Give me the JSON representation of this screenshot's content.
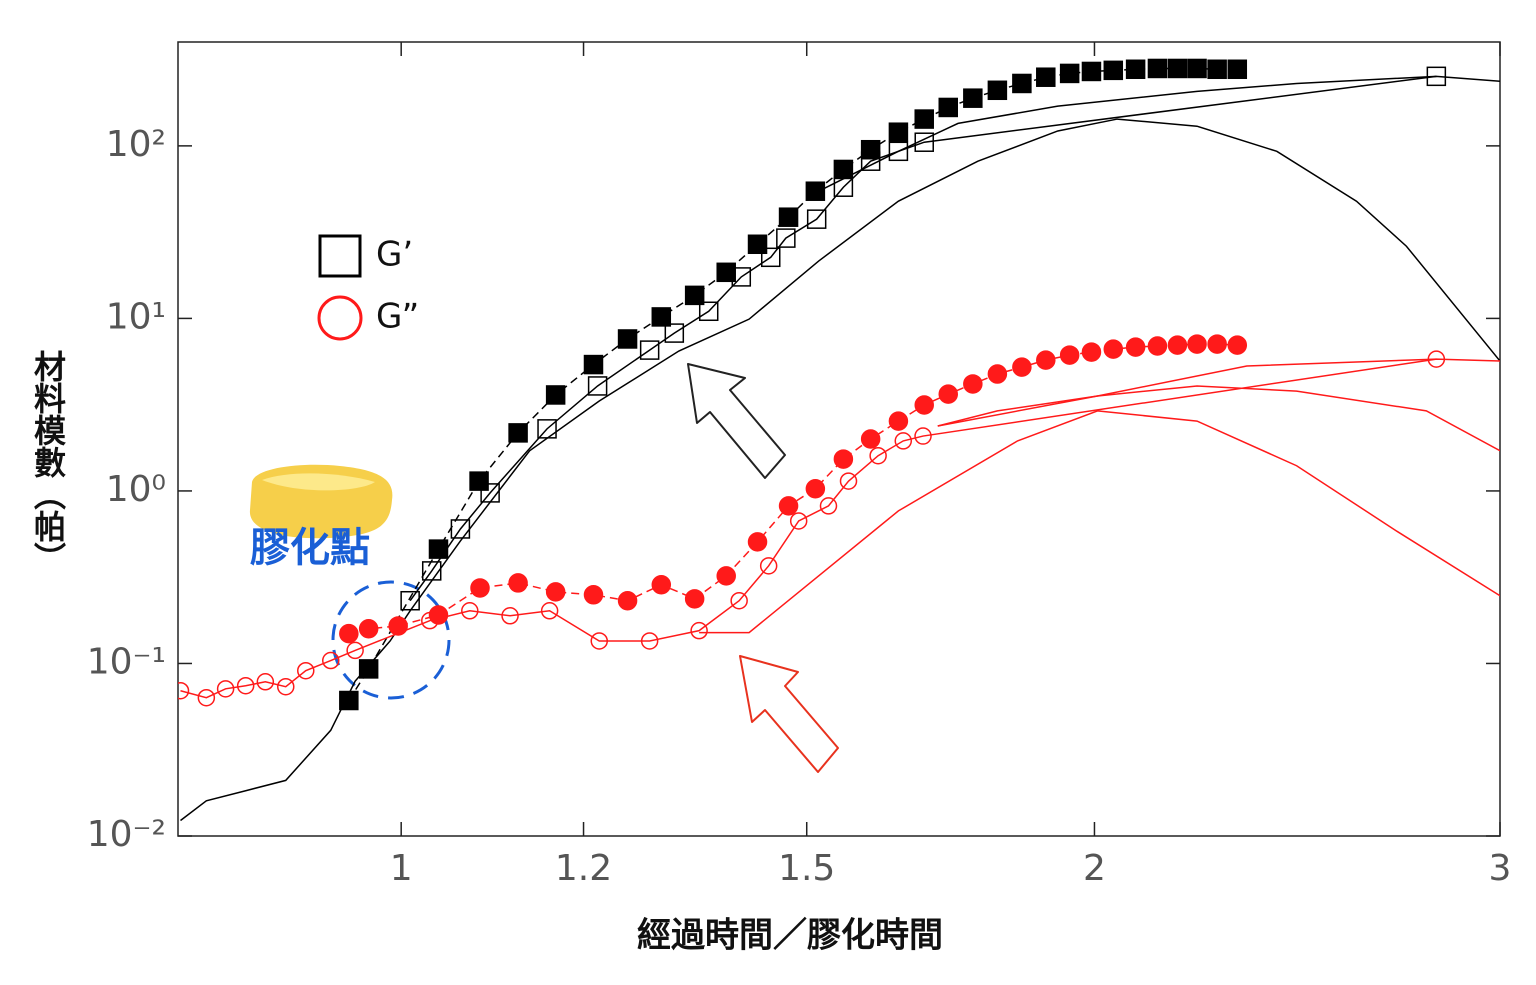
{
  "chart_data": {
    "type": "line",
    "x_label": "經過時間／膠化時間",
    "y_label": "材料模數（帕）",
    "annotation": "膠化點",
    "xscale": "log",
    "yscale": "log",
    "xlim": [
      0.8,
      3
    ],
    "ylim": [
      0.01,
      400
    ],
    "xticks": [
      1,
      1.2,
      1.5,
      2,
      3
    ],
    "yticks": [
      {
        "value": 0.01,
        "label": "10⁻²"
      },
      {
        "value": 0.1,
        "label": "10⁻¹"
      },
      {
        "value": 1,
        "label": "10⁰"
      },
      {
        "value": 10,
        "label": "10¹"
      },
      {
        "value": 100,
        "label": "10²"
      }
    ],
    "legend": [
      {
        "name": "G’",
        "color": "#000000",
        "marker": "open-square"
      },
      {
        "name": "G”",
        "color": "#ff1a1a",
        "marker": "open-circle"
      }
    ],
    "series": [
      {
        "color": "#000000",
        "line": "solid",
        "marker": "none",
        "x": [
          0.802,
          0.823,
          0.856,
          0.891,
          0.932,
          0.955,
          0.989,
          1.009,
          1.061,
          1.137,
          1.219,
          1.32,
          1.416,
          1.518,
          1.644,
          1.78,
          1.928,
          2.046,
          2.216,
          2.4,
          2.599,
          2.732,
          3
        ],
        "values": [
          0.0123,
          0.016,
          0.0183,
          0.021,
          0.041,
          0.079,
          0.135,
          0.202,
          0.513,
          1.71,
          3.32,
          6.47,
          9.9,
          21.5,
          47.8,
          81.5,
          122,
          143,
          130,
          93,
          47.8,
          26.2,
          5.66
        ]
      },
      {
        "color": "#000000",
        "line": "solid",
        "marker": "none",
        "x": [
          1.518,
          1.644,
          1.745,
          1.928,
          2.216,
          2.448,
          2.815,
          3
        ],
        "values": [
          54.6,
          93,
          135,
          170,
          207,
          230,
          253,
          237
        ]
      },
      {
        "color": "#000000",
        "line": "solid",
        "marker": "open-square",
        "x": [
          1.009,
          1.031,
          1.061,
          1.093,
          1.157,
          1.217,
          1.282,
          1.314,
          1.36,
          1.405,
          1.447,
          1.469,
          1.515,
          1.556,
          1.599,
          1.644,
          1.687,
          2.815
        ],
        "values": [
          0.231,
          0.344,
          0.602,
          0.974,
          2.29,
          4.06,
          6.55,
          8.22,
          11,
          17.4,
          22.6,
          29.2,
          37.6,
          57.6,
          81.5,
          93,
          105,
          253
        ]
      },
      {
        "color": "#000000",
        "line": "dashed",
        "marker": "filled-square",
        "x": [
          0.949,
          0.968,
          1.038,
          1.081,
          1.124,
          1.167,
          1.212,
          1.254,
          1.297,
          1.341,
          1.384,
          1.428,
          1.473,
          1.513,
          1.556,
          1.599,
          1.644,
          1.687,
          1.728,
          1.771,
          1.815,
          1.86,
          1.905,
          1.951,
          1.994,
          2.038,
          2.084,
          2.13,
          2.173,
          2.216,
          2.261,
          2.307
        ],
        "values": [
          0.061,
          0.093,
          0.46,
          1.14,
          2.17,
          3.6,
          5.4,
          7.6,
          10.2,
          13.6,
          18.5,
          26.9,
          38.6,
          54.6,
          73,
          95,
          120,
          143,
          167,
          189,
          210,
          230,
          250,
          263,
          270,
          274,
          278,
          281,
          281,
          281,
          278,
          278
        ]
      },
      {
        "color": "#ff1a1a",
        "line": "solid",
        "marker": "none",
        "x": [
          1.347,
          1.416,
          1.644,
          1.852,
          2.006,
          2.216,
          2.448,
          2.705,
          3
        ],
        "values": [
          0.151,
          0.151,
          0.766,
          1.95,
          2.91,
          2.54,
          1.4,
          0.586,
          0.247
        ]
      },
      {
        "color": "#ff1a1a",
        "line": "solid",
        "marker": "none",
        "x": [
          1.71,
          1.815,
          2.006,
          2.216,
          2.448,
          2.787,
          3
        ],
        "values": [
          2.38,
          2.91,
          3.55,
          4.06,
          3.79,
          2.91,
          1.71
        ]
      },
      {
        "color": "#ff1a1a",
        "line": "solid",
        "marker": "none",
        "x": [
          1.71,
          2.006,
          2.329,
          2.815,
          3
        ],
        "values": [
          2.38,
          3.55,
          5.3,
          5.81,
          5.66
        ]
      },
      {
        "color": "#ff1a1a",
        "line": "solid",
        "marker": "open-circle",
        "x": [
          0.802,
          0.823,
          0.839,
          0.856,
          0.873,
          0.891,
          0.909,
          0.932,
          0.955,
          1.029,
          1.071,
          1.115,
          1.16,
          1.219,
          1.282,
          1.347,
          1.402,
          1.444,
          1.488,
          1.533,
          1.564,
          1.611,
          1.652,
          1.685,
          2.815
        ],
        "values": [
          0.0695,
          0.0633,
          0.0713,
          0.0743,
          0.0783,
          0.0733,
          0.0908,
          0.104,
          0.119,
          0.177,
          0.202,
          0.189,
          0.202,
          0.135,
          0.135,
          0.155,
          0.231,
          0.368,
          0.67,
          0.819,
          1.14,
          1.6,
          1.95,
          2.08,
          5.81
        ]
      },
      {
        "color": "#ff1a1a",
        "line": "dashed",
        "marker": "filled-circle",
        "x": [
          0.949,
          0.968,
          0.997,
          1.038,
          1.082,
          1.124,
          1.167,
          1.212,
          1.254,
          1.297,
          1.341,
          1.384,
          1.428,
          1.473,
          1.513,
          1.556,
          1.599,
          1.644,
          1.687,
          1.728,
          1.771,
          1.815,
          1.86,
          1.905,
          1.951,
          1.994,
          2.038,
          2.084,
          2.13,
          2.173,
          2.216,
          2.261,
          2.307
        ],
        "values": [
          0.149,
          0.159,
          0.165,
          0.191,
          0.274,
          0.293,
          0.26,
          0.25,
          0.231,
          0.286,
          0.237,
          0.322,
          0.507,
          0.819,
          1.03,
          1.53,
          2,
          2.54,
          3.15,
          3.64,
          4.17,
          4.76,
          5.22,
          5.73,
          6.13,
          6.38,
          6.64,
          6.82,
          6.92,
          7,
          7.1,
          7.1,
          7
        ]
      }
    ]
  }
}
